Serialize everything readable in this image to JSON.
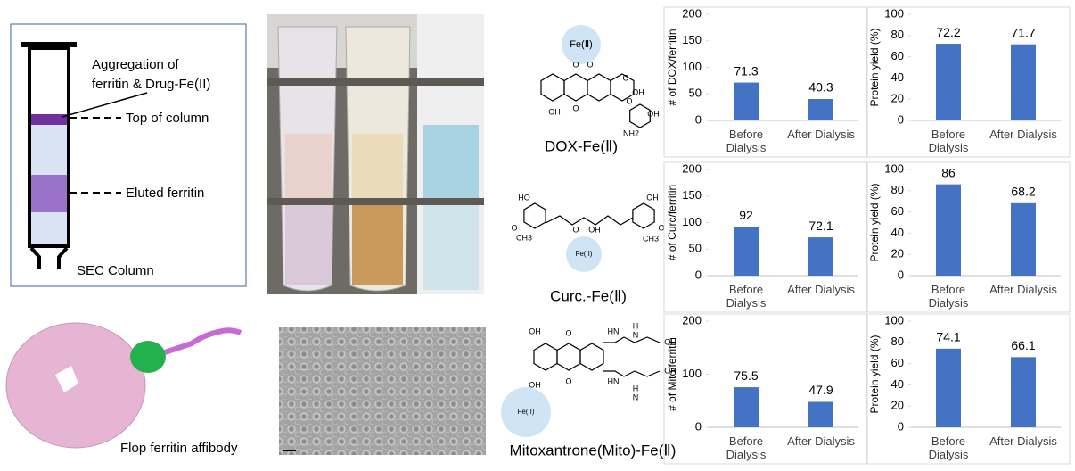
{
  "figure": {
    "column_panel": {
      "aggregation_label": [
        "Aggregation of",
        "ferritin & Drug-Fe(II)"
      ],
      "top_label": "Top of column",
      "eluted_label": "Eluted ferritin",
      "caption": "SEC Column"
    },
    "affibody_caption": "Flop ferritin affibody",
    "structures": [
      {
        "name": "DOX-Fe(Ⅱ)",
        "fe_label": "Fe(Ⅱ)",
        "atoms": [
          "O",
          "O",
          "O",
          "OH",
          "OH",
          "O",
          "O",
          "OH",
          "NH2"
        ]
      },
      {
        "name": "Curc.-Fe(Ⅱ)",
        "fe_label": "Fe(II)",
        "atoms": [
          "HO",
          "O",
          "CH3",
          "O",
          "OH",
          "OH",
          "O",
          "CH3"
        ]
      },
      {
        "name": "Mitoxantrone(Mito)-Fe(Ⅱ)",
        "fe_label": "Fe(II)",
        "atoms": [
          "OH",
          "O",
          "OH",
          "O",
          "HN",
          "H",
          "N",
          "OH",
          "HN",
          "H",
          "N",
          "OH"
        ]
      }
    ]
  },
  "chart_data": [
    {
      "type": "bar",
      "y_label": "# of DOX/ferritin",
      "categories": [
        "Before Dialysis",
        "After Dialysis"
      ],
      "values": [
        71.3,
        40.3
      ],
      "color": "#4472c4",
      "ylim": [
        0,
        200
      ],
      "yticks": [
        0,
        50,
        100,
        150,
        200
      ]
    },
    {
      "type": "bar",
      "y_label": "Protein yield (%)",
      "categories": [
        "Before Dialysis",
        "After Dialysis"
      ],
      "values": [
        72.2,
        71.7
      ],
      "color": "#4472c4",
      "ylim": [
        0,
        100
      ],
      "yticks": [
        0,
        20,
        40,
        60,
        80,
        100
      ]
    },
    {
      "type": "bar",
      "y_label": "# of Curc/ferritin",
      "categories": [
        "Before Dialysis",
        "After Dialysis"
      ],
      "values": [
        92,
        72.1
      ],
      "color": "#4472c4",
      "ylim": [
        0,
        200
      ],
      "yticks": [
        0,
        50,
        100,
        150,
        200
      ]
    },
    {
      "type": "bar",
      "y_label": "Protein yield (%)",
      "categories": [
        "Before Dialysis",
        "After Dialysis"
      ],
      "values": [
        86,
        68.2
      ],
      "color": "#4472c4",
      "ylim": [
        0,
        100
      ],
      "yticks": [
        0,
        20,
        40,
        60,
        80,
        100
      ]
    },
    {
      "type": "bar",
      "y_label": "# of Mito/ferritin",
      "categories": [
        "Before Dialysis",
        "After Dialysis"
      ],
      "values": [
        75.5,
        47.9
      ],
      "color": "#4472c4",
      "ylim": [
        0,
        200
      ],
      "yticks": [
        0,
        100,
        200
      ]
    },
    {
      "type": "bar",
      "y_label": "Protein yield (%)",
      "categories": [
        "Before Dialysis",
        "After Dialysis"
      ],
      "values": [
        74.1,
        66.1
      ],
      "color": "#4472c4",
      "ylim": [
        0,
        100
      ],
      "yticks": [
        0,
        20,
        40,
        60,
        80,
        100
      ]
    }
  ]
}
